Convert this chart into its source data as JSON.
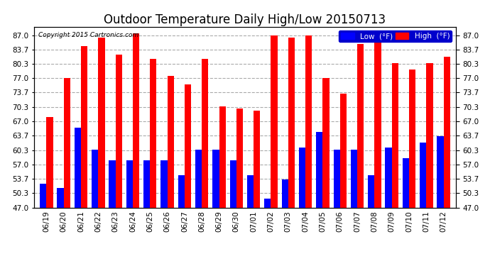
{
  "title": "Outdoor Temperature Daily High/Low 20150713",
  "copyright": "Copyright 2015 Cartronics.com",
  "yticks": [
    47.0,
    50.3,
    53.7,
    57.0,
    60.3,
    63.7,
    67.0,
    70.3,
    73.7,
    77.0,
    80.3,
    83.7,
    87.0
  ],
  "ylim": [
    47.0,
    89.0
  ],
  "dates": [
    "06/19",
    "06/20",
    "06/21",
    "06/22",
    "06/23",
    "06/24",
    "06/25",
    "06/26",
    "06/27",
    "06/28",
    "06/29",
    "06/30",
    "07/01",
    "07/02",
    "07/03",
    "07/04",
    "07/05",
    "07/06",
    "07/07",
    "07/08",
    "07/09",
    "07/10",
    "07/11",
    "07/12"
  ],
  "high": [
    68.0,
    77.0,
    84.5,
    86.5,
    82.5,
    87.5,
    81.5,
    77.5,
    75.5,
    81.5,
    70.5,
    70.0,
    69.5,
    87.0,
    86.5,
    87.0,
    77.0,
    73.5,
    85.0,
    86.5,
    80.5,
    79.0,
    80.5,
    82.0
  ],
  "low": [
    52.5,
    51.5,
    65.5,
    60.5,
    58.0,
    58.0,
    58.0,
    58.0,
    54.5,
    60.5,
    60.5,
    58.0,
    54.5,
    49.0,
    53.5,
    61.0,
    64.5,
    60.5,
    60.5,
    54.5,
    61.0,
    58.5,
    62.0,
    63.5
  ],
  "bar_width": 0.38,
  "high_color": "#FF0000",
  "low_color": "#0000FF",
  "bg_color": "#FFFFFF",
  "grid_color": "#AAAAAA",
  "title_fontsize": 12,
  "tick_fontsize": 7.5,
  "legend_high_label": "High  (°F)",
  "legend_low_label": "Low  (°F)",
  "fig_width": 6.9,
  "fig_height": 3.75,
  "dpi": 100
}
